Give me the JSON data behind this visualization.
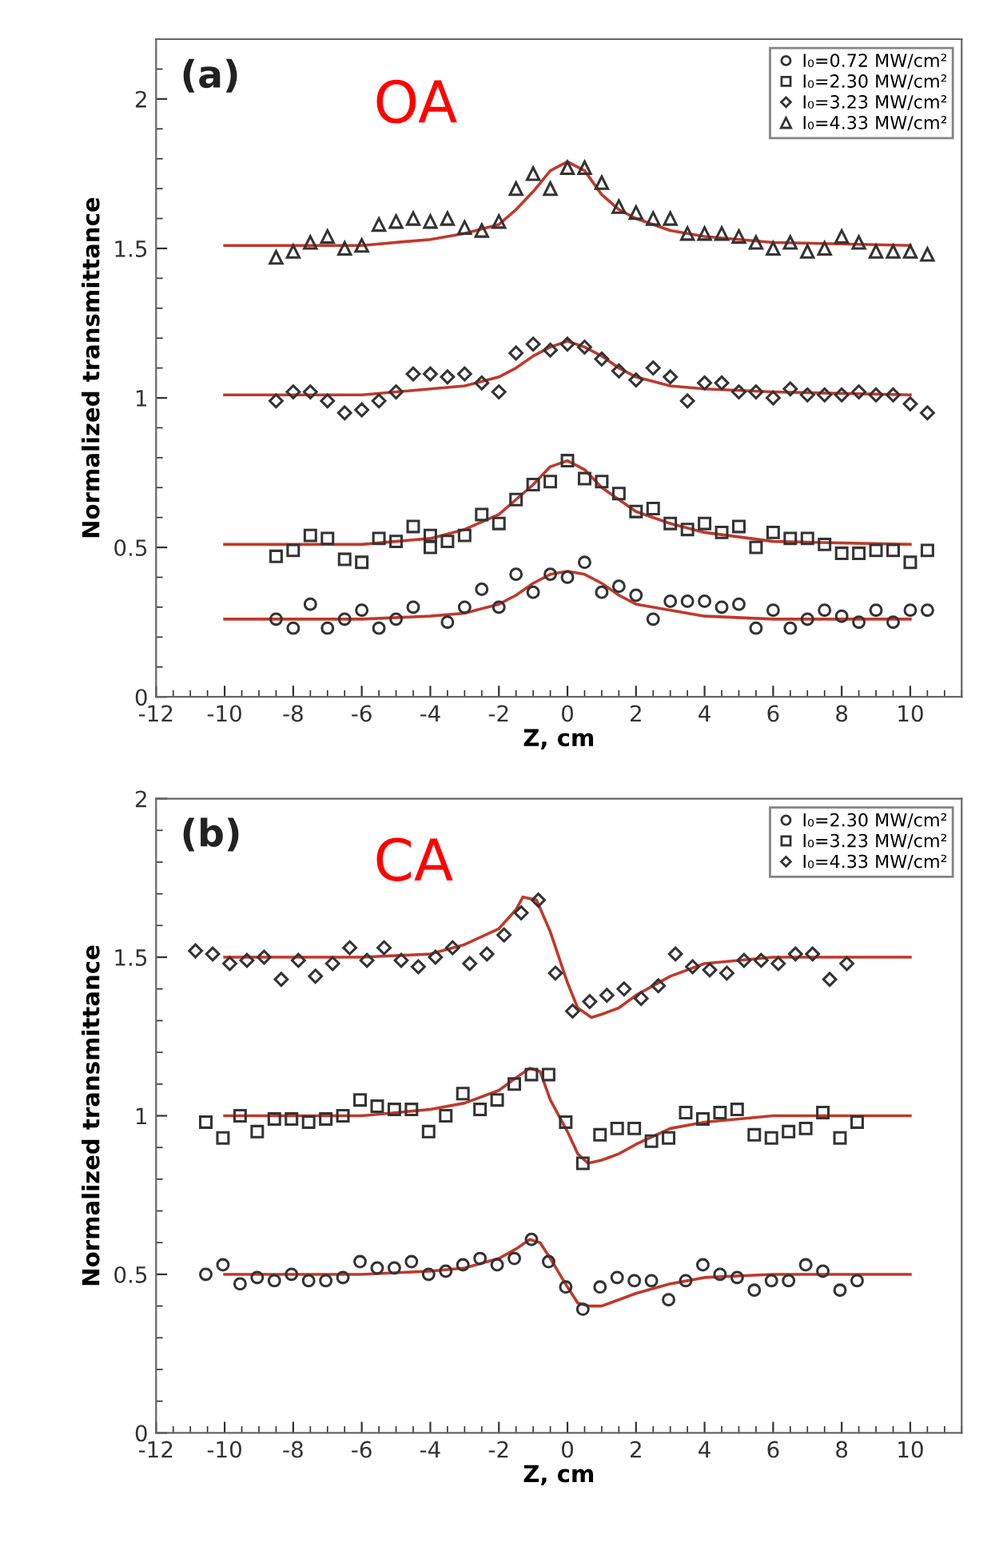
{
  "chart_data": [
    {
      "type": "scatter",
      "xlabel": "Z, cm",
      "ylabel": "Normalized transmittance",
      "annotations": [
        "(a)",
        "OA"
      ],
      "xlim": [
        -12,
        11.5
      ],
      "xticks": [
        -12,
        -10,
        -8,
        -6,
        -4,
        -2,
        0,
        2,
        4,
        6,
        8,
        10
      ],
      "ylim": [
        0,
        2.2
      ],
      "yticks": [
        0,
        0.5,
        1,
        1.5,
        2
      ],
      "legend": "top right",
      "grid": false,
      "series": [
        {
          "name": "I₀=0.72 MW/cm²",
          "type": "scatter",
          "marker": "circle",
          "color": "#333333",
          "x": [
            -8.5,
            -8,
            -7.5,
            -7,
            -6.5,
            -6,
            -5.5,
            -5,
            -4.5,
            -3.5,
            -3,
            -2.5,
            -2,
            -1.5,
            -1,
            -0.5,
            0,
            0.5,
            1,
            1.5,
            2,
            2.5,
            3,
            3.5,
            4,
            4.5,
            5,
            5.5,
            6,
            6.5,
            7,
            7.5,
            8,
            8.5,
            9,
            9.5,
            10,
            10.5
          ],
          "values": [
            0.26,
            0.23,
            0.31,
            0.23,
            0.26,
            0.29,
            0.23,
            0.26,
            0.3,
            0.25,
            0.3,
            0.36,
            0.3,
            0.41,
            0.35,
            0.41,
            0.4,
            0.45,
            0.35,
            0.37,
            0.34,
            0.26,
            0.32,
            0.32,
            0.32,
            0.3,
            0.31,
            0.23,
            0.29,
            0.23,
            0.26,
            0.29,
            0.27,
            0.25,
            0.29,
            0.25,
            0.29,
            0.29
          ]
        },
        {
          "name": "I₀=2.30 MW/cm²",
          "type": "scatter",
          "marker": "square",
          "color": "#333333",
          "x": [
            -8.5,
            -8,
            -7.5,
            -7,
            -6.5,
            -6,
            -5.5,
            -5,
            -4.5,
            -4,
            -4,
            -3.5,
            -3,
            -2.5,
            -2,
            -1.5,
            -1,
            -0.5,
            0,
            0.5,
            1,
            1.5,
            2,
            2.5,
            3,
            3.5,
            4,
            4.5,
            5,
            5.5,
            6,
            6.5,
            7,
            7.5,
            8,
            8.5,
            9,
            9.5,
            10,
            10.5
          ],
          "values": [
            0.47,
            0.49,
            0.54,
            0.53,
            0.46,
            0.45,
            0.53,
            0.52,
            0.57,
            0.54,
            0.5,
            0.52,
            0.54,
            0.61,
            0.58,
            0.66,
            0.71,
            0.72,
            0.79,
            0.73,
            0.72,
            0.68,
            0.62,
            0.63,
            0.58,
            0.56,
            0.58,
            0.55,
            0.57,
            0.5,
            0.55,
            0.53,
            0.53,
            0.51,
            0.48,
            0.48,
            0.49,
            0.49,
            0.45,
            0.49
          ]
        },
        {
          "name": "I₀=3.23 MW/cm²",
          "type": "scatter",
          "marker": "diamond",
          "color": "#333333",
          "x": [
            -8.5,
            -8,
            -7.5,
            -7,
            -6.5,
            -6,
            -5.5,
            -5,
            -4.5,
            -4,
            -3.5,
            -3,
            -2.5,
            -2,
            -1.5,
            -1,
            -0.5,
            0,
            0.5,
            1,
            1.5,
            2,
            2.5,
            3,
            3.5,
            4,
            4.5,
            5,
            5.5,
            6,
            6.5,
            7,
            7.5,
            8,
            8.5,
            9,
            9.5,
            10,
            10.5
          ],
          "values": [
            0.99,
            1.02,
            1.02,
            0.99,
            0.95,
            0.96,
            0.99,
            1.02,
            1.08,
            1.08,
            1.07,
            1.08,
            1.05,
            1.02,
            1.15,
            1.18,
            1.16,
            1.18,
            1.17,
            1.13,
            1.09,
            1.06,
            1.1,
            1.07,
            0.99,
            1.05,
            1.05,
            1.02,
            1.02,
            1.0,
            1.03,
            1.01,
            1.01,
            1.01,
            1.02,
            1.01,
            1.01,
            0.98,
            0.95
          ]
        },
        {
          "name": "I₀=4.33 MW/cm²",
          "type": "scatter",
          "marker": "triangle",
          "color": "#333333",
          "x": [
            -8.5,
            -8,
            -7.5,
            -7,
            -6.5,
            -6,
            -5.5,
            -5,
            -4.5,
            -4,
            -3.5,
            -3,
            -2.5,
            -2,
            -1.5,
            -1,
            -0.5,
            0,
            0.5,
            1,
            1.5,
            2,
            2.5,
            3,
            3.5,
            4,
            4.5,
            5,
            5.5,
            6,
            6.5,
            7,
            7.5,
            8,
            8.5,
            9,
            9.5,
            10,
            10.5
          ],
          "values": [
            1.47,
            1.49,
            1.52,
            1.54,
            1.5,
            1.51,
            1.58,
            1.59,
            1.6,
            1.59,
            1.6,
            1.57,
            1.56,
            1.59,
            1.7,
            1.75,
            1.7,
            1.77,
            1.77,
            1.72,
            1.64,
            1.62,
            1.6,
            1.6,
            1.55,
            1.55,
            1.55,
            1.54,
            1.52,
            1.5,
            1.52,
            1.49,
            1.5,
            1.54,
            1.52,
            1.49,
            1.49,
            1.49,
            1.48
          ]
        },
        {
          "type": "line",
          "color": "#c0392b",
          "x": [
            -10,
            -6,
            -4,
            -3,
            -2,
            -1.5,
            -1,
            -0.5,
            0,
            0.5,
            1,
            1.5,
            2,
            3,
            4,
            6,
            10
          ],
          "values": [
            0.26,
            0.26,
            0.27,
            0.28,
            0.31,
            0.34,
            0.38,
            0.41,
            0.42,
            0.41,
            0.38,
            0.34,
            0.31,
            0.29,
            0.27,
            0.26,
            0.26
          ]
        },
        {
          "type": "line",
          "color": "#c0392b",
          "x": [
            -10,
            -6,
            -4,
            -3,
            -2,
            -1.5,
            -1,
            -0.5,
            0,
            0.5,
            1,
            1.5,
            2,
            3,
            4,
            6,
            10
          ],
          "values": [
            0.51,
            0.51,
            0.53,
            0.56,
            0.61,
            0.66,
            0.71,
            0.77,
            0.79,
            0.76,
            0.7,
            0.66,
            0.62,
            0.58,
            0.55,
            0.52,
            0.51
          ]
        },
        {
          "type": "line",
          "color": "#c0392b",
          "x": [
            -10,
            -6,
            -4,
            -3,
            -2,
            -1.5,
            -1,
            -0.5,
            0,
            0.5,
            1,
            1.5,
            2,
            3,
            4,
            6,
            10
          ],
          "values": [
            1.01,
            1.01,
            1.03,
            1.04,
            1.07,
            1.1,
            1.14,
            1.17,
            1.19,
            1.17,
            1.14,
            1.1,
            1.07,
            1.04,
            1.03,
            1.02,
            1.01
          ]
        },
        {
          "type": "line",
          "color": "#c0392b",
          "x": [
            -10,
            -6,
            -4,
            -3,
            -2,
            -1.5,
            -1,
            -0.5,
            0,
            0.5,
            1,
            1.5,
            2,
            3,
            4,
            6,
            10
          ],
          "values": [
            1.51,
            1.51,
            1.53,
            1.55,
            1.58,
            1.63,
            1.69,
            1.76,
            1.79,
            1.76,
            1.68,
            1.63,
            1.6,
            1.56,
            1.54,
            1.52,
            1.51
          ]
        }
      ]
    },
    {
      "type": "scatter",
      "xlabel": "Z, cm",
      "ylabel": "Normalized transmittance",
      "annotations": [
        "(b)",
        "CA"
      ],
      "xlim": [
        -12,
        11.5
      ],
      "xticks": [
        -12,
        -10,
        -8,
        -6,
        -4,
        -2,
        0,
        2,
        4,
        6,
        8,
        10
      ],
      "ylim": [
        0,
        2
      ],
      "yticks": [
        0,
        0.5,
        1,
        1.5,
        2
      ],
      "legend": "top right",
      "grid": false,
      "series": [
        {
          "name": "I₀=2.30 MW/cm²",
          "type": "scatter",
          "marker": "circle",
          "color": "#333333",
          "x": [
            -10.55,
            -10.05,
            -9.55,
            -9.05,
            -8.55,
            -8.05,
            -7.55,
            -7.05,
            -6.55,
            -6.05,
            -5.55,
            -5.05,
            -4.55,
            -4.05,
            -3.55,
            -3.05,
            -2.55,
            -2.05,
            -1.55,
            -1.05,
            -0.55,
            -0.05,
            0.45,
            0.95,
            1.45,
            1.95,
            2.45,
            2.95,
            3.45,
            3.95,
            4.45,
            4.95,
            5.45,
            5.95,
            6.45,
            6.95,
            7.45,
            7.95,
            8.45
          ],
          "values": [
            0.5,
            0.53,
            0.47,
            0.49,
            0.48,
            0.5,
            0.48,
            0.48,
            0.49,
            0.54,
            0.52,
            0.52,
            0.54,
            0.5,
            0.51,
            0.53,
            0.55,
            0.53,
            0.55,
            0.61,
            0.54,
            0.46,
            0.39,
            0.46,
            0.49,
            0.48,
            0.48,
            0.42,
            0.48,
            0.53,
            0.5,
            0.49,
            0.45,
            0.48,
            0.48,
            0.53,
            0.51,
            0.45,
            0.48
          ]
        },
        {
          "name": "I₀=3.23 MW/cm²",
          "type": "scatter",
          "marker": "square",
          "color": "#333333",
          "x": [
            -10.55,
            -10.05,
            -9.55,
            -9.05,
            -8.55,
            -8.05,
            -7.55,
            -7.05,
            -6.55,
            -6.05,
            -5.55,
            -5.05,
            -4.55,
            -4.05,
            -3.55,
            -3.05,
            -2.55,
            -2.05,
            -1.55,
            -1.05,
            -0.55,
            -0.05,
            0.45,
            0.95,
            1.45,
            1.95,
            2.45,
            2.95,
            3.45,
            3.95,
            4.45,
            4.95,
            5.45,
            5.95,
            6.45,
            6.95,
            7.45,
            7.95,
            8.45
          ],
          "values": [
            0.98,
            0.93,
            1.0,
            0.95,
            0.99,
            0.99,
            0.98,
            0.99,
            1.0,
            1.05,
            1.03,
            1.02,
            1.02,
            0.95,
            1.0,
            1.07,
            1.02,
            1.05,
            1.1,
            1.13,
            1.13,
            0.98,
            0.85,
            0.94,
            0.96,
            0.96,
            0.92,
            0.93,
            1.01,
            0.99,
            1.01,
            1.02,
            0.94,
            0.93,
            0.95,
            0.96,
            1.01,
            0.93,
            0.98
          ]
        },
        {
          "name": "I₀=4.33 MW/cm²",
          "type": "scatter",
          "marker": "diamond",
          "color": "#333333",
          "x": [
            -10.85,
            -10.35,
            -9.85,
            -9.35,
            -8.85,
            -8.35,
            -7.85,
            -7.35,
            -6.85,
            -6.35,
            -5.85,
            -5.35,
            -4.85,
            -4.35,
            -3.85,
            -3.35,
            -2.85,
            -2.35,
            -1.85,
            -1.35,
            -0.85,
            -0.35,
            0.15,
            0.65,
            1.15,
            1.65,
            2.15,
            2.65,
            3.15,
            3.65,
            4.15,
            4.65,
            5.15,
            5.65,
            6.15,
            6.65,
            7.15,
            7.65,
            8.15
          ],
          "values": [
            1.52,
            1.51,
            1.48,
            1.49,
            1.5,
            1.43,
            1.49,
            1.44,
            1.48,
            1.53,
            1.49,
            1.53,
            1.49,
            1.47,
            1.5,
            1.53,
            1.48,
            1.51,
            1.57,
            1.64,
            1.68,
            1.45,
            1.33,
            1.36,
            1.38,
            1.4,
            1.37,
            1.41,
            1.51,
            1.47,
            1.46,
            1.45,
            1.49,
            1.49,
            1.48,
            1.51,
            1.51,
            1.43,
            1.48
          ]
        },
        {
          "type": "line",
          "color": "#c0392b",
          "x": [
            -10,
            -6,
            -4,
            -3,
            -2,
            -1.5,
            -1.1,
            -0.8,
            -0.5,
            0,
            0.3,
            0.6,
            1,
            1.5,
            2,
            3,
            4,
            6,
            10
          ],
          "values": [
            0.5,
            0.5,
            0.51,
            0.52,
            0.55,
            0.58,
            0.61,
            0.6,
            0.55,
            0.46,
            0.41,
            0.4,
            0.4,
            0.42,
            0.44,
            0.47,
            0.49,
            0.5,
            0.5
          ]
        },
        {
          "type": "line",
          "color": "#c0392b",
          "x": [
            -10,
            -6,
            -4,
            -3,
            -2,
            -1.5,
            -1.1,
            -0.8,
            -0.5,
            0,
            0.3,
            0.6,
            1,
            1.5,
            2,
            3,
            4,
            6,
            10
          ],
          "values": [
            1.0,
            1.0,
            1.02,
            1.04,
            1.08,
            1.12,
            1.15,
            1.14,
            1.05,
            0.95,
            0.88,
            0.85,
            0.86,
            0.88,
            0.91,
            0.96,
            0.98,
            1.0,
            1.0
          ]
        },
        {
          "type": "line",
          "color": "#c0392b",
          "x": [
            -10,
            -6,
            -4,
            -3,
            -2,
            -1.5,
            -1.3,
            -0.9,
            -0.5,
            0,
            0.3,
            0.7,
            1,
            1.5,
            2,
            3,
            4,
            6,
            10
          ],
          "values": [
            1.5,
            1.5,
            1.51,
            1.54,
            1.59,
            1.65,
            1.69,
            1.68,
            1.58,
            1.42,
            1.34,
            1.31,
            1.32,
            1.34,
            1.38,
            1.44,
            1.48,
            1.5,
            1.5
          ]
        }
      ]
    }
  ]
}
